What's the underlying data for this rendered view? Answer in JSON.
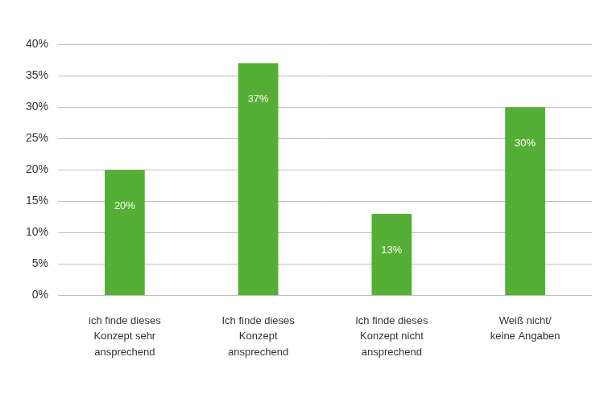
{
  "chart_data": {
    "type": "bar",
    "categories": [
      "ich finde dieses Konzept sehr ansprechend",
      "Ich finde dieses Konzept ansprechend",
      "Ich finde dieses Konzept nicht ansprechend",
      "Weiß nicht/ keine Angaben"
    ],
    "values": [
      20,
      37,
      13,
      30
    ],
    "value_labels": [
      "20%",
      "37%",
      "13%",
      "30%"
    ],
    "data_labels": true,
    "color": "#55ae35",
    "ylim": [
      0,
      40
    ],
    "yticks": [
      {
        "value": 0,
        "label": "0%"
      },
      {
        "value": 5,
        "label": "5%"
      },
      {
        "value": 10,
        "label": "10%"
      },
      {
        "value": 15,
        "label": "15%"
      },
      {
        "value": 20,
        "label": "20%"
      },
      {
        "value": 25,
        "label": "25%"
      },
      {
        "value": 30,
        "label": "30%"
      },
      {
        "value": 35,
        "label": "35%"
      },
      {
        "value": 40,
        "label": "40%"
      }
    ],
    "grid": true
  }
}
